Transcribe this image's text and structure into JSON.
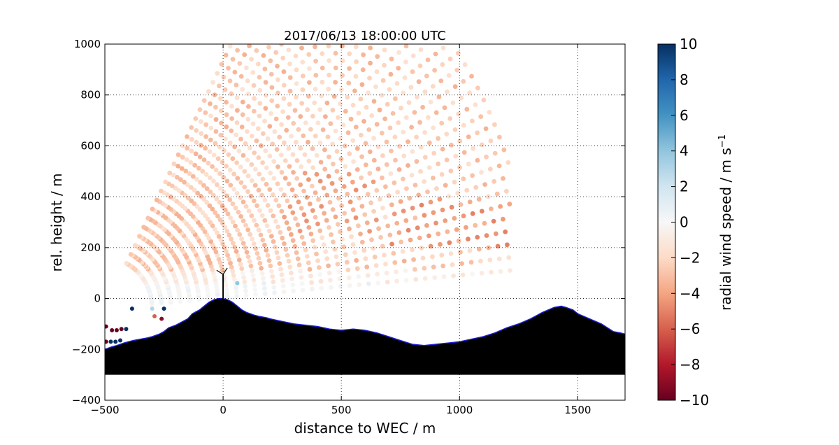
{
  "chart_data": {
    "type": "scatter",
    "title": "2017/06/13 18:00:00 UTC",
    "xlabel": "distance to WEC / m",
    "ylabel": "rel. height / m",
    "xlim": [
      -500,
      1700
    ],
    "ylim": [
      -400,
      1000
    ],
    "x_ticks": [
      -500,
      0,
      500,
      1000,
      1500
    ],
    "y_ticks": [
      -400,
      -200,
      0,
      200,
      400,
      600,
      800,
      1000
    ],
    "x_tick_labels": [
      "−500",
      "0",
      "500",
      "1000",
      "1500"
    ],
    "y_tick_labels": [
      "−400",
      "−200",
      "0",
      "200",
      "400",
      "600",
      "800",
      "1000"
    ],
    "grid": true,
    "colormap": "RdBu",
    "colorbar": {
      "label": "radial wind speed / m s",
      "label_superscript": "−1",
      "range": [
        -10,
        10
      ],
      "ticks": [
        -10,
        -8,
        -6,
        -4,
        -2,
        0,
        2,
        4,
        6,
        8,
        10
      ],
      "tick_labels": [
        "−10",
        "−8",
        "−6",
        "−4",
        "−2",
        "0",
        "2",
        "4",
        "6",
        "8",
        "10"
      ]
    },
    "scan_origin": [
      -500,
      -40
    ],
    "scan": {
      "range_min": 200,
      "range_max": 1800,
      "range_step": 40,
      "theta_min_deg": 5,
      "theta_max_deg": 64,
      "theta_step_deg": 1.7,
      "mean_velocity": -2.5
    },
    "terrain": {
      "x": [
        -500,
        -470,
        -450,
        -420,
        -400,
        -380,
        -350,
        -320,
        -300,
        -270,
        -250,
        -230,
        -200,
        -180,
        -150,
        -130,
        -100,
        -80,
        -60,
        -40,
        -20,
        0,
        20,
        40,
        60,
        80,
        100,
        130,
        150,
        180,
        200,
        250,
        300,
        350,
        400,
        450,
        500,
        550,
        600,
        650,
        700,
        750,
        800,
        850,
        900,
        950,
        1000,
        1050,
        1100,
        1150,
        1200,
        1250,
        1300,
        1350,
        1400,
        1430,
        1450,
        1480,
        1500,
        1550,
        1600,
        1650,
        1680,
        1700
      ],
      "y": [
        -200,
        -190,
        -185,
        -175,
        -170,
        -165,
        -160,
        -155,
        -150,
        -140,
        -130,
        -115,
        -105,
        -95,
        -80,
        -60,
        -45,
        -30,
        -15,
        -5,
        0,
        0,
        -5,
        -15,
        -30,
        -45,
        -55,
        -65,
        -70,
        -75,
        -80,
        -90,
        -100,
        -105,
        -110,
        -120,
        -125,
        -120,
        -125,
        -135,
        -150,
        -165,
        -180,
        -185,
        -180,
        -175,
        -170,
        -160,
        -150,
        -135,
        -115,
        -100,
        -80,
        -55,
        -35,
        -30,
        -35,
        -45,
        -60,
        -80,
        -100,
        -130,
        -135,
        -140
      ],
      "base": -300
    },
    "turbine": {
      "x": 0,
      "hub_height": 95,
      "rotor_radius": 40
    },
    "near_ground_points": [
      {
        "x": -385,
        "y": -40,
        "v": 10
      },
      {
        "x": -300,
        "y": -40,
        "v": 3
      },
      {
        "x": -250,
        "y": -40,
        "v": 10
      },
      {
        "x": -290,
        "y": -70,
        "v": -6
      },
      {
        "x": -260,
        "y": -80,
        "v": -9
      },
      {
        "x": -495,
        "y": -110,
        "v": -10
      },
      {
        "x": -470,
        "y": -125,
        "v": -10
      },
      {
        "x": -450,
        "y": -125,
        "v": -10
      },
      {
        "x": -430,
        "y": -120,
        "v": -10
      },
      {
        "x": -410,
        "y": -120,
        "v": 10
      },
      {
        "x": -495,
        "y": -170,
        "v": -10
      },
      {
        "x": -475,
        "y": -170,
        "v": 10
      },
      {
        "x": -455,
        "y": -170,
        "v": 10
      },
      {
        "x": -435,
        "y": -165,
        "v": 10
      },
      {
        "x": 60,
        "y": 60,
        "v": 4
      }
    ],
    "colors": {
      "terrain_fill": "#000000",
      "terrain_edge": "#1f1fd0"
    }
  }
}
